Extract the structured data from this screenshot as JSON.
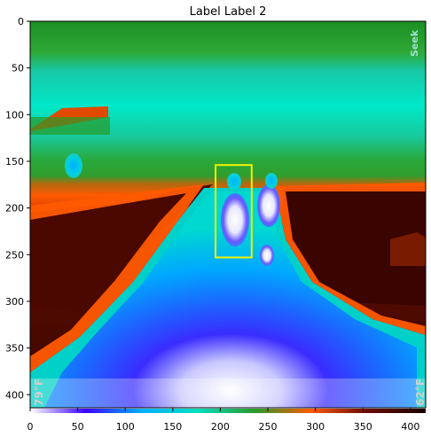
{
  "chart_data": {
    "type": "heatmap",
    "title": "Label Label 2",
    "image_width": 416,
    "image_height": 414,
    "x_ticks": [
      0,
      50,
      100,
      150,
      200,
      250,
      300,
      350,
      400
    ],
    "y_ticks": [
      0,
      50,
      100,
      150,
      200,
      250,
      300,
      350,
      400
    ],
    "xlim": [
      0,
      416
    ],
    "ylim": [
      414,
      0
    ],
    "colormap_overlays": {
      "left_temp": "79°F",
      "right_temp": "62°F",
      "brand": "Seek"
    },
    "bounding_box": {
      "label": "",
      "x": [
        195,
        233
      ],
      "y": [
        154,
        253
      ],
      "color": "#f2f200"
    },
    "colormap": [
      "#ffffff",
      "#3a00ff",
      "#00b0ff",
      "#00e0c0",
      "#2a9a2a",
      "#ff5a00",
      "#6a0a00",
      "#1a0000"
    ]
  }
}
